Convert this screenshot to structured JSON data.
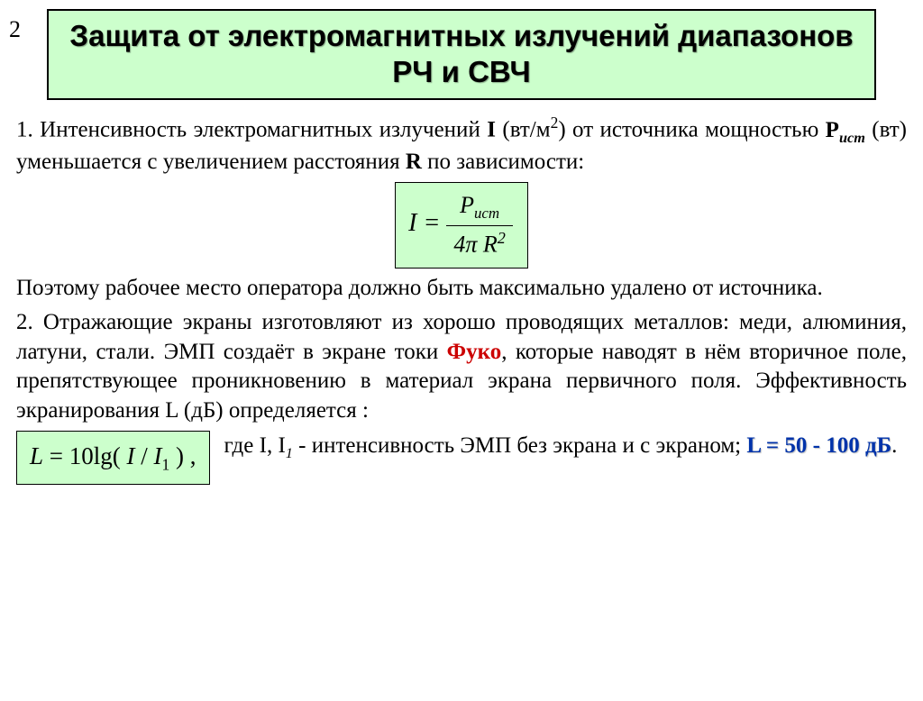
{
  "page_number": "2",
  "title": "Защита от электромагнитных излучений диапазонов РЧ и СВЧ",
  "colors": {
    "title_bg": "#ccffcc",
    "title_border": "#000000",
    "body_text": "#000000",
    "highlight_red": "#cc0000",
    "highlight_blue": "#0033aa",
    "formula_bg": "#ccffcc",
    "formula_border": "#000000",
    "page_bg": "#ffffff"
  },
  "typography": {
    "title_font": "Arial",
    "title_size_pt": 33,
    "title_weight": "bold",
    "body_font": "Times New Roman",
    "body_size_pt": 25
  },
  "para1_prefix": "1. Интенсивность электромагнитных излучений ",
  "para1_I": "I",
  "para1_units_open": " (вт/м",
  "para1_units_sup": "2",
  "para1_units_close": ") от источника мощностью ",
  "para1_P": "P",
  "para1_Psub": "ист",
  "para1_after_P": " (вт) уменьшается с увеличением расстояния ",
  "para1_R": "R",
  "para1_tail": " по зависимости:",
  "formula1": {
    "lhs": "I",
    "eq": " = ",
    "num_P": "P",
    "num_sub": "ист",
    "den_4": "4",
    "den_pi": "π",
    "den_R": " R",
    "den_sup": "2"
  },
  "para2": "Поэтому рабочее место оператора должно быть максимально удалено от источника.",
  "para3a": "2. Отражающие экраны изготовляют из хорошо проводящих металлов: меди, алюминия, латуни, стали. ЭМП создаёт в экране токи ",
  "para3_fuko": "Фуко",
  "para3b": ", которые наводят в нём вторичное поле, препятствующее проникновению в материал экрана первичного поля. Эффективность экранирования  L (дБ)  определяется :",
  "formula2": {
    "L": "L",
    "eq": " = ",
    "ten": "10",
    "lg": "lg( ",
    "I": "I",
    "slash": " / ",
    "I1": "I",
    "I1sub": "1",
    "close": " ) ,"
  },
  "legend_a": "где  I, I",
  "legend_sub": "1",
  "legend_b": " - интенсивность ЭМП  без экрана и с экраном;  ",
  "db_range": "L = 50 - 100 дБ",
  "legend_period": "."
}
